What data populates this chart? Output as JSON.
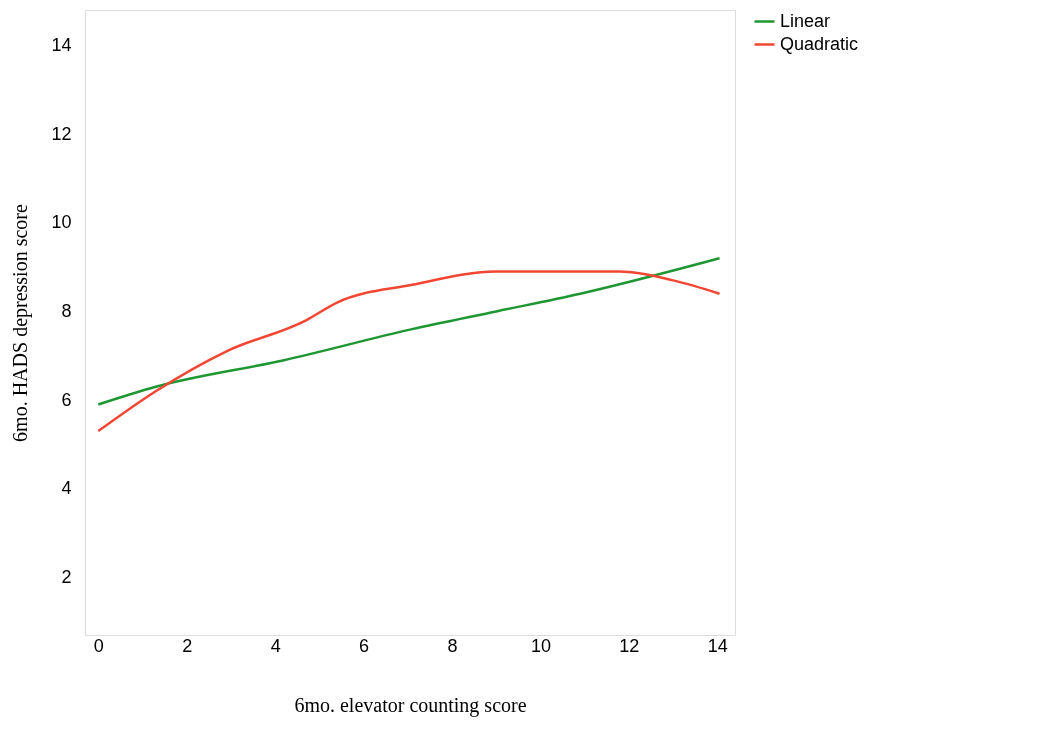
{
  "chart_data": {
    "type": "line",
    "xlabel": "6mo. elevator counting score",
    "ylabel": "6mo. HADS depression score",
    "xlim": [
      -0.3,
      14.4
    ],
    "ylim": [
      0.7,
      14.8
    ],
    "xticks": [
      0,
      2,
      4,
      6,
      8,
      10,
      12,
      14
    ],
    "yticks": [
      2,
      4,
      6,
      8,
      10,
      12,
      14
    ],
    "grid": false,
    "legend": "right",
    "marker": "none",
    "line_style": "solid",
    "series": [
      {
        "name": "Linear",
        "color": "#1e9632",
        "x": [
          0,
          1.3,
          4.2,
          7.1,
          9.0,
          10.9,
          14.05
        ],
        "values": [
          5.9,
          6.3,
          6.9,
          7.6,
          8.0,
          8.4,
          9.2
        ]
      },
      {
        "name": "Quadratic",
        "color": "#f04632",
        "x": [
          0,
          1.3,
          2.9,
          4.7,
          5.4,
          7.1,
          9.0,
          10.4,
          11.8,
          13.0,
          14.05
        ],
        "values": [
          5.3,
          6.2,
          7.1,
          7.8,
          8.2,
          8.6,
          8.9,
          8.9,
          8.9,
          8.7,
          8.4
        ]
      }
    ]
  }
}
